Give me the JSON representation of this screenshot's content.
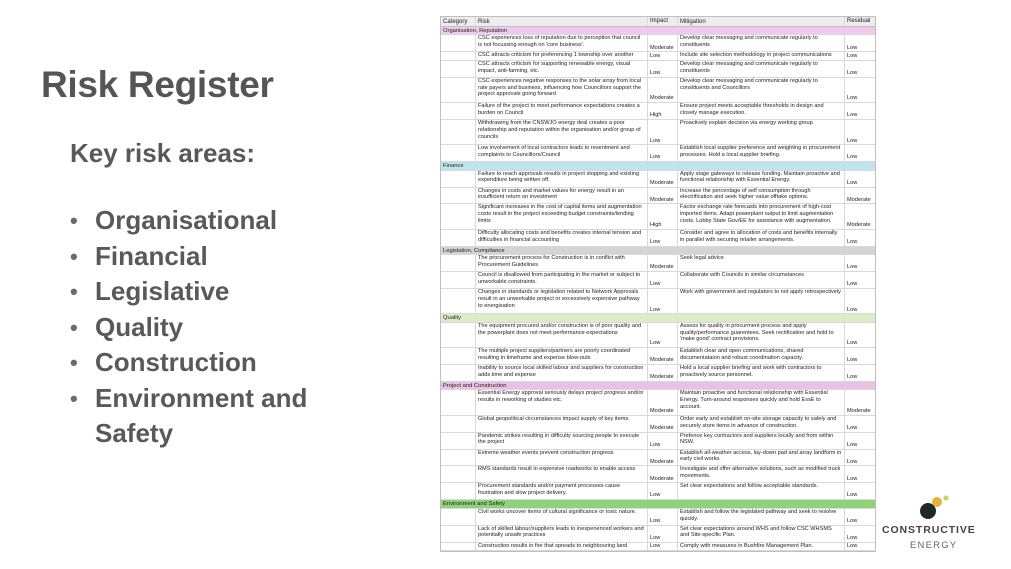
{
  "title": "Risk Register",
  "subtitle": "Key risk areas:",
  "risk_areas": [
    "Organisational",
    "Financial",
    "Legislative",
    "Quality",
    "Construction",
    "Environment and Safety"
  ],
  "table": {
    "headers": {
      "category": "Category",
      "risk": "Risk",
      "impact": "Impact",
      "mitigation": "Mitigation",
      "residual": "Residual"
    },
    "section_colors": {
      "Organisation, Reputation": "#f2c8ef",
      "Finance": "#bde4ef",
      "Legislation, Compliance": "#d4d4d4",
      "Quality": "#d8efc6",
      "Project and Construction": "#eebfe6",
      "Environment and Safety": "#8fd27a"
    },
    "rows": [
      {
        "type": "section",
        "label": "Organisation, Reputation"
      },
      {
        "type": "risk",
        "lines": 2,
        "risk": "CSC experiences loss of reputation due to perception that council is not focussing enough on 'core business'.",
        "impact": "Moderate",
        "mitigation": "Develop clear messaging and communicate regularly to constituents",
        "residual": "Low"
      },
      {
        "type": "risk",
        "lines": 1,
        "risk": "CSC attracts criticism for preferencing 1 township over another",
        "impact": "Low",
        "mitigation": "Include site selection methodology in project communications",
        "residual": "Low"
      },
      {
        "type": "risk",
        "lines": 2,
        "risk": "CSC attracts criticism for supporting renewable energy, visual impact, anti-farming, etc.",
        "impact": "Low",
        "mitigation": "Develop clear messaging and communicate regularly to constituents",
        "residual": "Low"
      },
      {
        "type": "risk",
        "lines": 3,
        "risk": "CSC experiences negative responses to the solar array from local rate payers and business, influencing how Councillors support the project approvals going forward",
        "impact": "Moderate",
        "mitigation": "Develop clear messaging and communicate regularly to constituents and Councillors",
        "residual": "Low"
      },
      {
        "type": "risk",
        "lines": 2,
        "risk": "Failure of the project to meet performance expectations creates a burden on Council",
        "impact": "High",
        "mitigation": "Ensure project meets acceptable thresholds in design and closely manage execution.",
        "residual": "Low"
      },
      {
        "type": "risk",
        "lines": 3,
        "risk": "Withdrawing from the CNSWJO energy deal creates a poor relationship and reputation within the organisation and/or group of councils",
        "impact": "Low",
        "mitigation": "Proactively explain decision via energy working group",
        "residual": "Low"
      },
      {
        "type": "risk",
        "lines": 2,
        "risk": "Low involvement of local contractors leads to resentment and complaints to Councillors/Council",
        "impact": "Low",
        "mitigation": "Establish local supplier preference and weighting in procurement processes. Hold a local supplier briefing.",
        "residual": "Low"
      },
      {
        "type": "section",
        "label": "Finance"
      },
      {
        "type": "risk",
        "lines": 2,
        "risk": "Failure to reach approvals results in project stopping and existing expenditure being written off.",
        "impact": "Moderate",
        "mitigation": "Apply stage gateways to release funding. Maintain proactive and functional relationship with Essential Energy.",
        "residual": "Low"
      },
      {
        "type": "risk",
        "lines": 2,
        "risk": "Changes in costs and market values for energy result in an insufficient return on investment",
        "impact": "Moderate",
        "mitigation": "Increase the percentage of self consumption through electrification and seek higher value offtake options.",
        "residual": "Moderate"
      },
      {
        "type": "risk",
        "lines": 3,
        "risk": "Significant increases in the cost of capital items and augmentation costs result in the project exceeding budget constraints/lending limits",
        "impact": "High",
        "mitigation": "Factor exchange rate forecasts into procurement of high-cost imported items. Adapt powerplant output to limit augmentation costs. Lobby State Gov/EE for assistance with augmentation.",
        "residual": "Moderate"
      },
      {
        "type": "risk",
        "lines": 2,
        "risk": "Difficulty allocating costs and benefits creates internal tension and difficulties in financial accounting",
        "impact": "Low",
        "mitigation": "Consider and agree to allocation of costs and benefits internally in parallel with securing retailer arrangements.",
        "residual": "Low"
      },
      {
        "type": "section",
        "label": "Legislation, Compliance"
      },
      {
        "type": "risk",
        "lines": 2,
        "risk": "The procurement process for Construction is in conflict with Procurement Guidelines",
        "impact": "Moderate",
        "mitigation": "Seek legal advice",
        "residual": "Low"
      },
      {
        "type": "risk",
        "lines": 2,
        "risk": "Council is disallowed from participating in the market or subject to unworkable constraints.",
        "impact": "Low",
        "mitigation": "Collaborate with Councils in similar circumstances",
        "residual": "Low"
      },
      {
        "type": "risk",
        "lines": 3,
        "risk": "Changes in standards or legislation related to Network Approvals result in an unworkable project or excessively expensive pathway to energisation",
        "impact": "Low",
        "mitigation": "Work with government and regulators to not apply retrospectively",
        "residual": "Low"
      },
      {
        "type": "section",
        "label": "Quality"
      },
      {
        "type": "risk",
        "lines": 3,
        "risk": "The equipment procured and/or construction is of poor quality and the powerplant does not meet performance expectations",
        "impact": "Low",
        "mitigation": "Assess for quality in procurment process and apply quality/performance guarentees. Seek rectification and hold to 'make good' contract provisions.",
        "residual": "Low"
      },
      {
        "type": "risk",
        "lines": 2,
        "risk": "The multiple project suppliers/partners are poorly coordinated resulting in timeframe and expense blow-outs",
        "impact": "Moderate",
        "mitigation": "Establish clear and open communications, shared documentataion and robust coordination capacity.",
        "residual": "Low"
      },
      {
        "type": "risk",
        "lines": 2,
        "risk": "Inability to source local skilled labour and suppliers for construction adds time and expense",
        "impact": "Moderate",
        "mitigation": "Hold a local supplier briefing and work with contractors to proactively source personnel.",
        "residual": "Low"
      },
      {
        "type": "section",
        "label": "Project and Construction"
      },
      {
        "type": "risk",
        "lines": 3,
        "risk": "Essential Energy approval seriously delays project progress and/or results in reworking of studies etc.",
        "impact": "Moderate",
        "mitigation": "Maintain proactive and functional relationship with Essential Energy. Turn-around responses quickly and hold EssE to account.",
        "residual": "Moderate"
      },
      {
        "type": "risk",
        "lines": 2,
        "risk": "Global geopolitical circumstances impact supply of key items.",
        "impact": "Moderate",
        "mitigation": "Order early and establish on-site storage capacity to safely and securely store items in advance of construction.",
        "residual": "Low"
      },
      {
        "type": "risk",
        "lines": 2,
        "risk": "Pandemic strikes resulting in difficulty sourcing people to execute the project",
        "impact": "Low",
        "mitigation": "Prefence key contractors and suppliers locally and from within NSW.",
        "residual": "Low"
      },
      {
        "type": "risk",
        "lines": 2,
        "risk": "Extreme weather events prevent construction progress",
        "impact": "Moderate",
        "mitigation": "Establish all-weather access, lay-down pad and array landform in early civil works.",
        "residual": "Low"
      },
      {
        "type": "risk",
        "lines": 2,
        "risk": "RMS standards result in expensive roadworks to enable access",
        "impact": "Moderate",
        "mitigation": "Investigate and offer alternative solutions, such as modified truck movements.",
        "residual": "Low"
      },
      {
        "type": "risk",
        "lines": 2,
        "risk": "Procurement standards and/or payment processes cause frustration and slow project delivery.",
        "impact": "Low",
        "mitigation": "Set clear expectations and follow acceptable standards.",
        "residual": "Low"
      },
      {
        "type": "section",
        "label": "Environment and Safety"
      },
      {
        "type": "risk",
        "lines": 2,
        "risk": "Civil works uncover items of cultural significance or toxic nature.",
        "impact": "Low",
        "mitigation": "Establish and follow the legislated pathway and seek to resolve quickly.",
        "residual": "Low"
      },
      {
        "type": "risk",
        "lines": 2,
        "risk": "Lack of skilled labour/suppliers leads to inexpenenced workers and potentially unsafe practices",
        "impact": "Low",
        "mitigation": "Set clear expectations around WHS and follow CSC WHSMS and Site-specific Plan.",
        "residual": "Low"
      },
      {
        "type": "risk",
        "lines": 1,
        "risk": "Construction results in fire that spreads to neighbouring land",
        "impact": "Low",
        "mitigation": "Comply with measures in Bushfire Management Plan.",
        "residual": "Low"
      }
    ]
  },
  "logo": {
    "line1": "CONSTRUCTIVE",
    "line2": "ENERGY",
    "dot_colors": [
      "#c9d653",
      "#e8b23a",
      "#1f2a24"
    ]
  }
}
